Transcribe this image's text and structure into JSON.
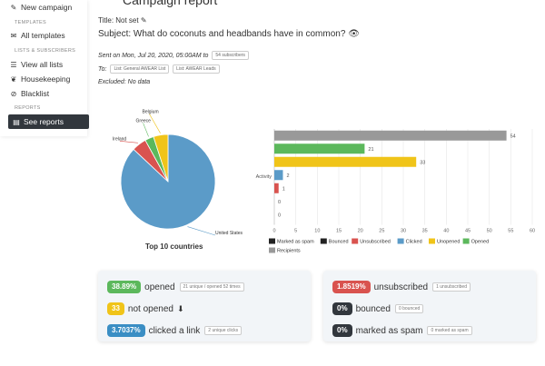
{
  "sidebar": {
    "new_campaign": "New campaign",
    "section_templates": "TEMPLATES",
    "all_templates": "All templates",
    "section_lists": "LISTS & SUBSCRIBERS",
    "view_all_lists": "View all lists",
    "housekeeping": "Housekeeping",
    "blacklist": "Blacklist",
    "section_reports": "REPORTS",
    "see_reports": "See reports"
  },
  "header": {
    "page_title": "Campaign report",
    "title_line": "Title: Not set",
    "subject_line": "Subject: What do coconuts and headbands have in common?",
    "sent_on": "Sent on Mon, Jul 20, 2020, 05:00AM to",
    "subscribers_tag": "54 subscribers",
    "to_label": "To:",
    "list_1": "List: General AWEAR List",
    "list_2": "List: AWEAR Leads",
    "excluded": "Excluded: No data"
  },
  "chart_data": [
    {
      "type": "pie",
      "title": "Top 10 countries",
      "categories": [
        "United States",
        "Ireland",
        "Greece",
        "Belgium"
      ],
      "values": [
        87,
        5,
        3,
        5
      ],
      "colors": [
        "#5b9bc8",
        "#d9534f",
        "#5cb85c",
        "#f0c419"
      ]
    },
    {
      "type": "bar",
      "orientation": "horizontal",
      "category_label": "Activity",
      "series": [
        {
          "name": "Recipients",
          "value": 54,
          "color": "#999999"
        },
        {
          "name": "Opened",
          "value": 21,
          "color": "#5cb85c"
        },
        {
          "name": "Unopened",
          "value": 33,
          "color": "#f0c419"
        },
        {
          "name": "Clicked",
          "value": 2,
          "color": "#5b9bc8"
        },
        {
          "name": "Unsubscribed",
          "value": 1,
          "color": "#d9534f"
        },
        {
          "name": "Bounced",
          "value": 0,
          "color": "#222222"
        },
        {
          "name": "Marked as spam",
          "value": 0,
          "color": "#222222"
        }
      ],
      "xlim": [
        0,
        60
      ],
      "x_ticks": [
        "0",
        "5",
        "10",
        "15",
        "20",
        "25",
        "30",
        "35",
        "40",
        "45",
        "50",
        "55",
        "60"
      ],
      "legend": [
        "Marked as spam",
        "Bounced",
        "Unsubscribed",
        "Clicked",
        "Unopened",
        "Opened",
        "Recipients"
      ],
      "legend_colors": [
        "#222222",
        "#222222",
        "#d9534f",
        "#5b9bc8",
        "#f0c419",
        "#5cb85c",
        "#999999"
      ]
    }
  ],
  "stats_left": {
    "opened_pct": "38.89%",
    "opened_label": "opened",
    "opened_note": "21 unique / opened 52 times",
    "not_opened_count": "33",
    "not_opened_label": "not opened",
    "clicked_pct": "3.7037%",
    "clicked_label": "clicked a link",
    "clicked_note": "2 unique clicks"
  },
  "stats_right": {
    "unsub_pct": "1.8519%",
    "unsub_label": "unsubscribed",
    "unsub_note": "1 unsubscribed",
    "bounced_pct": "0%",
    "bounced_label": "bounced",
    "bounced_note": "0 bounced",
    "spam_pct": "0%",
    "spam_label": "marked as spam",
    "spam_note": "0 marked as spam"
  },
  "colors": {
    "green": "#5cb85c",
    "yellow": "#f0c419",
    "blue": "#5b9bc8",
    "red": "#d9534f",
    "dark": "#32373d"
  }
}
